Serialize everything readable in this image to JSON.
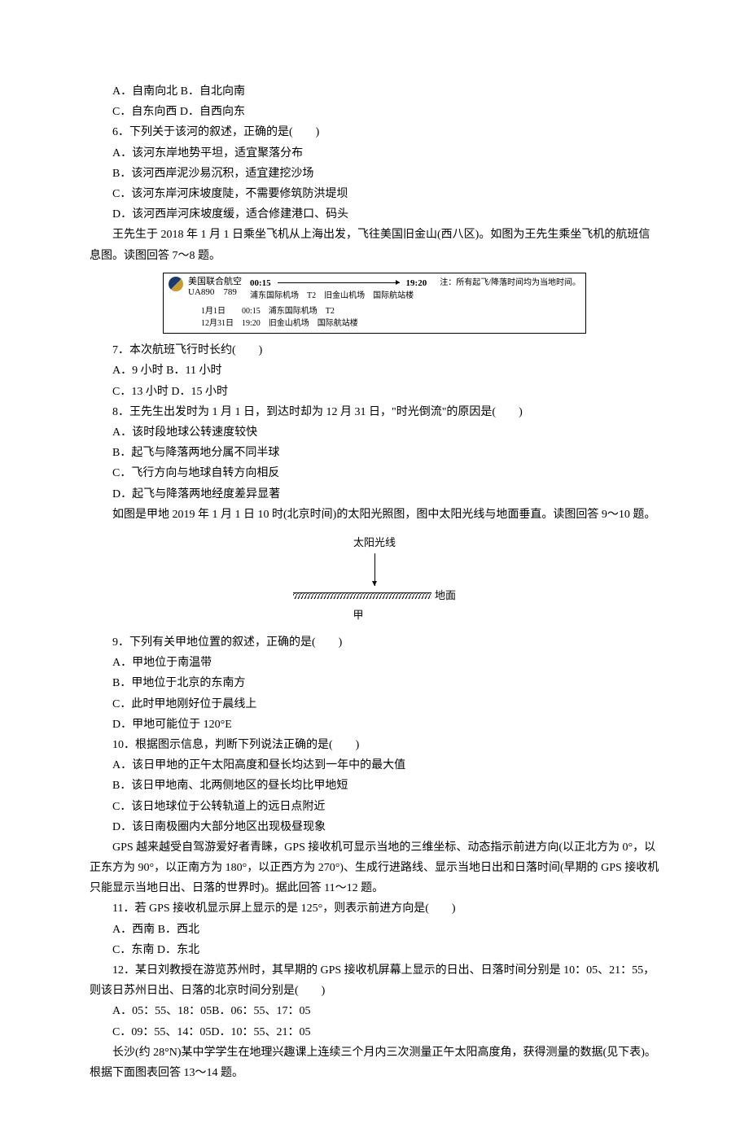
{
  "q5": {
    "A": "A．自南向北",
    "B": "B．自北向南",
    "C": "C．自东向西",
    "D": "D．自西向东"
  },
  "q6": {
    "stem": "6．下列关于该河的叙述，正确的是(　　)",
    "A": "A．该河东岸地势平坦，适宜聚落分布",
    "B": "B．该河西岸泥沙易沉积，适宜建挖沙场",
    "C": "C．该河东岸河床坡度陡，不需要修筑防洪堤坝",
    "D": "D．该河西岸河床坡度缓，适合修建港口、码头"
  },
  "passage78": "王先生于 2018 年 1 月 1 日乘坐飞机从上海出发，飞往美国旧金山(西八区)。如图为王先生乘坐飞机的航班信息图。读图回答 7～8 题。",
  "flight": {
    "airline": "美国联合航空",
    "flightno": "UA890　789",
    "dep_time": "00:15",
    "arr_time": "19:20",
    "dep_airport": "浦东国际机场　T2",
    "arr_airport": "旧金山机场　国际航站楼",
    "note": "注：所有起飞/降落时间均为当地时间。",
    "row1": "1月1日　　00:15　浦东国际机场　T2",
    "row2": "12月31日　19:20　旧金山机场　国际航站楼"
  },
  "q7": {
    "stem": "7．本次航班飞行时长约(　　)",
    "A": "A．9 小时",
    "B": "B．11 小时",
    "C": "C．13 小时",
    "D": "D．15 小时"
  },
  "q8": {
    "stem": "8．王先生出发时为 1 月 1 日，到达时却为 12 月 31 日，\"时光倒流\"的原因是(　　)",
    "A": "A．该时段地球公转速度较快",
    "B": "B．起飞与降落两地分属不同半球",
    "C": "C．飞行方向与地球自转方向相反",
    "D": "D．起飞与降落两地经度差异显著"
  },
  "passage910": "如图是甲地 2019 年 1 月 1 日 10 时(北京时间)的太阳光照图，图中太阳光线与地面垂直。读图回答 9～10 题。",
  "diagram": {
    "sun": "太阳光线",
    "ground": "地面",
    "jia": "甲"
  },
  "q9": {
    "stem": "9．下列有关甲地位置的叙述，正确的是(　　)",
    "A": "A．甲地位于南温带",
    "B": "B．甲地位于北京的东南方",
    "C": "C．此时甲地刚好位于晨线上",
    "D": "D．甲地可能位于 120°E"
  },
  "q10": {
    "stem": "10．根据图示信息，判断下列说法正确的是(　　)",
    "A": "A．该日甲地的正午太阳高度和昼长均达到一年中的最大值",
    "B": "B．该日甲地南、北两侧地区的昼长均比甲地短",
    "C": "C．该日地球位于公转轨道上的远日点附近",
    "D": "D．该日南极圈内大部分地区出现极昼现象"
  },
  "passage1112": "GPS 越来越受自驾游爱好者青睐，GPS 接收机可显示当地的三维坐标、动态指示前进方向(以正北方为 0°，以正东方为 90°，以正南方为 180°，以正西方为 270°)、生成行进路线、显示当地日出和日落时间(早期的 GPS 接收机只能显示当地日出、日落的世界时)。据此回答 11～12 题。",
  "q11": {
    "stem": "11．若 GPS 接收机显示屏上显示的是 125°，则表示前进方向是(　　)",
    "A": "A．西南",
    "B": "B．西北",
    "C": "C．东南",
    "D": "D．东北"
  },
  "q12": {
    "stem": "12．某日刘教授在游览苏州时，其早期的 GPS 接收机屏幕上显示的日出、日落时间分别是 10：05、21：55，则该日苏州日出、日落的北京时间分别是(　　)",
    "A": "A．05：55、18：05",
    "B": "B．06：55、17：05",
    "C": "C．09：55、14：05",
    "D": "D．10：55、21：05"
  },
  "passage1314": "长沙(约 28°N)某中学学生在地理兴趣课上连续三个月内三次测量正午太阳高度角，获得测量的数据(见下表)。根据下面图表回答 13～14 题。"
}
